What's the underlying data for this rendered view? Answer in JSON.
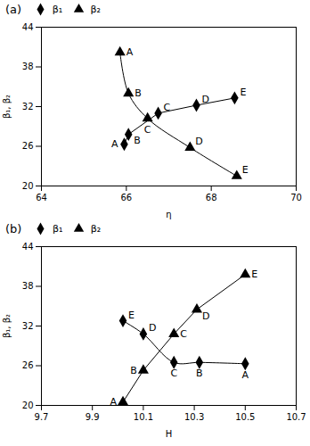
{
  "chart_data": [
    {
      "type": "line",
      "title": "(a)",
      "xlabel": "η",
      "ylabel": "β₁, β₂",
      "xlim": [
        64,
        70
      ],
      "ylim": [
        20,
        44
      ],
      "xticks": [
        64,
        66,
        68,
        70
      ],
      "yticks": [
        20,
        26,
        32,
        38,
        44
      ],
      "grid": false,
      "legend": "upper left",
      "series": [
        {
          "name": "β₁",
          "color": "black",
          "marker": "diamond",
          "line_style": "solid",
          "x": [
            65.95,
            66.05,
            66.75,
            67.65,
            68.55
          ],
          "values": [
            26.3,
            27.8,
            31.0,
            32.2,
            33.3
          ],
          "labels": [
            "A",
            "B",
            "C",
            "D",
            "E"
          ]
        },
        {
          "name": "β₂",
          "color": "black",
          "marker": "triangle",
          "line_style": "smooth",
          "x": [
            65.85,
            66.05,
            66.5,
            67.5,
            68.6
          ],
          "values": [
            40.2,
            34.0,
            30.2,
            25.8,
            21.5
          ],
          "labels": [
            "A",
            "B",
            "C",
            "D",
            "E"
          ]
        }
      ]
    },
    {
      "type": "line",
      "title": "(b)",
      "xlabel": "H",
      "ylabel": "β₁, β₂",
      "xlim": [
        9.7,
        10.7
      ],
      "ylim": [
        20,
        44
      ],
      "xticks": [
        9.7,
        9.9,
        10.1,
        10.3,
        10.5,
        10.7
      ],
      "yticks": [
        20,
        26,
        32,
        38,
        44
      ],
      "grid": false,
      "legend": "upper left",
      "series": [
        {
          "name": "β₁",
          "color": "black",
          "marker": "diamond",
          "line_style": "smooth",
          "x": [
            10.5,
            10.32,
            10.22,
            10.1,
            10.02
          ],
          "values": [
            26.3,
            26.5,
            26.5,
            30.8,
            32.8
          ],
          "labels": [
            "A",
            "B",
            "C",
            "D",
            "E"
          ]
        },
        {
          "name": "β₂",
          "color": "black",
          "marker": "triangle",
          "line_style": "solid",
          "x": [
            10.02,
            10.1,
            10.22,
            10.31,
            10.5
          ],
          "values": [
            20.5,
            25.3,
            30.8,
            34.5,
            39.8
          ],
          "labels": [
            "A",
            "B",
            "C",
            "D",
            "E"
          ]
        }
      ]
    }
  ]
}
